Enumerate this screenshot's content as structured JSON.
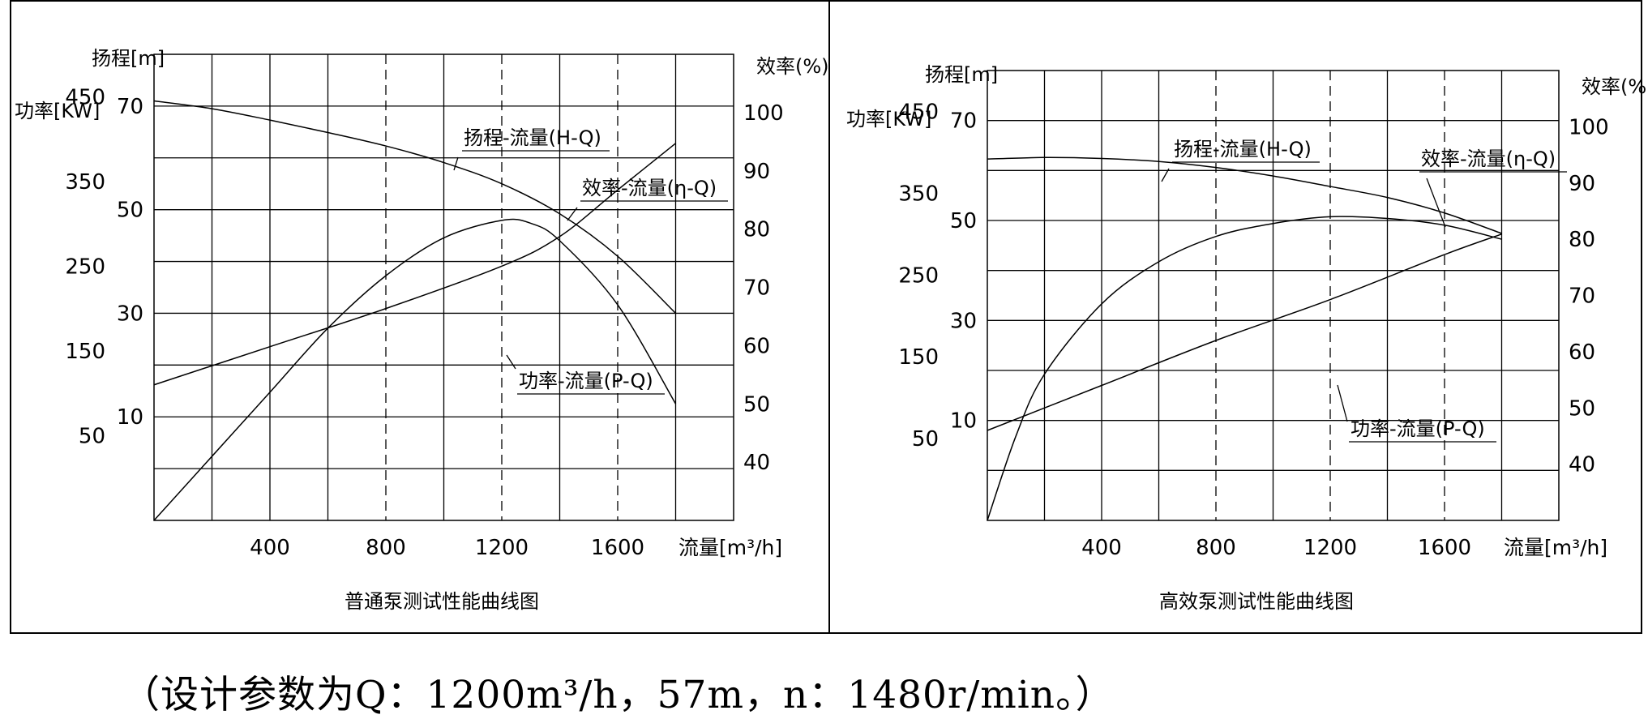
{
  "chart_data": [
    {
      "type": "line",
      "title": "普通泵测试性能曲线图",
      "xlabel": "流量[m³/h]",
      "ylabel_head": "扬程[m]",
      "ylabel_power": "功率[KW]",
      "ylabel_eff": "效率(%)",
      "xlim": [
        0,
        2000
      ],
      "x_ticks": [
        400,
        800,
        1200,
        1600
      ],
      "head_ticks": [
        10,
        30,
        50,
        70
      ],
      "power_ticks": [
        50,
        150,
        250,
        350,
        450
      ],
      "eff_ticks": [
        40,
        50,
        60,
        70,
        80,
        90,
        100
      ],
      "head_range": [
        -10,
        80
      ],
      "power_range": [
        -50,
        500
      ],
      "eff_range": [
        30,
        110
      ],
      "dashed_x": [
        800,
        1200,
        1600
      ],
      "series": [
        {
          "name": "扬程-流量(H-Q)",
          "axis": "head",
          "x": [
            0,
            200,
            400,
            600,
            800,
            1000,
            1200,
            1400,
            1600,
            1800
          ],
          "y": [
            71,
            69.5,
            67.3,
            64.9,
            62.3,
            59.1,
            55,
            49.2,
            41,
            30
          ]
        },
        {
          "name": "效率-流量(η-Q)",
          "axis": "eff",
          "x": [
            0,
            200,
            400,
            600,
            800,
            1000,
            1200,
            1300,
            1400,
            1600,
            1800
          ],
          "y": [
            30,
            41,
            52,
            63,
            72,
            78.5,
            81.5,
            81,
            78,
            67,
            50
          ]
        },
        {
          "name": "功率-流量(P-Q)",
          "axis": "power",
          "x": [
            0,
            400,
            800,
            1200,
            1400,
            1600,
            1800
          ],
          "y": [
            110,
            155,
            200,
            250,
            285,
            340,
            395
          ]
        }
      ],
      "labels": {
        "hq": "扬程-流量(H-Q)",
        "eq": "效率-流量(η-Q)",
        "pq": "功率-流量(P-Q)"
      }
    },
    {
      "type": "line",
      "title": "高效泵测试性能曲线图",
      "xlabel": "流量[m³/h]",
      "ylabel_head": "扬程[m]",
      "ylabel_power": "功率[KW]",
      "ylabel_eff": "效率(%)",
      "xlim": [
        0,
        2000
      ],
      "x_ticks": [
        400,
        800,
        1200,
        1600
      ],
      "head_ticks": [
        10,
        30,
        50,
        70
      ],
      "power_ticks": [
        50,
        150,
        250,
        350,
        450
      ],
      "eff_ticks": [
        40,
        50,
        60,
        70,
        80,
        90,
        100
      ],
      "head_range": [
        -10,
        80
      ],
      "power_range": [
        -50,
        500
      ],
      "eff_range": [
        30,
        110
      ],
      "dashed_x": [
        800,
        1200,
        1600
      ],
      "series": [
        {
          "name": "扬程-流量(H-Q)",
          "axis": "head",
          "x": [
            0,
            200,
            400,
            600,
            800,
            1000,
            1200,
            1400,
            1600,
            1800
          ],
          "y": [
            62.3,
            62.6,
            62.4,
            61.8,
            60.6,
            58.9,
            56.8,
            54.6,
            51.5,
            47.4
          ]
        },
        {
          "name": "效率-流量(η-Q)",
          "axis": "eff",
          "x": [
            0,
            100,
            200,
            400,
            600,
            800,
            1000,
            1200,
            1400,
            1600,
            1800
          ],
          "y": [
            30,
            45,
            56,
            68.5,
            76,
            80.5,
            82.8,
            84,
            83.7,
            82.5,
            80
          ]
        },
        {
          "name": "功率-流量(P-Q)",
          "axis": "power",
          "x": [
            0,
            400,
            800,
            1200,
            1600,
            1800
          ],
          "y": [
            60,
            115,
            170,
            220,
            275,
            300
          ]
        }
      ],
      "labels": {
        "hq": "扬程-流量(H-Q)",
        "eq": "效率-流量(η-Q)",
        "pq": "功率-流量(P-Q)"
      }
    }
  ],
  "caption": "（设计参数为Q：1200m³/h，57m，n：1480r/min。）"
}
